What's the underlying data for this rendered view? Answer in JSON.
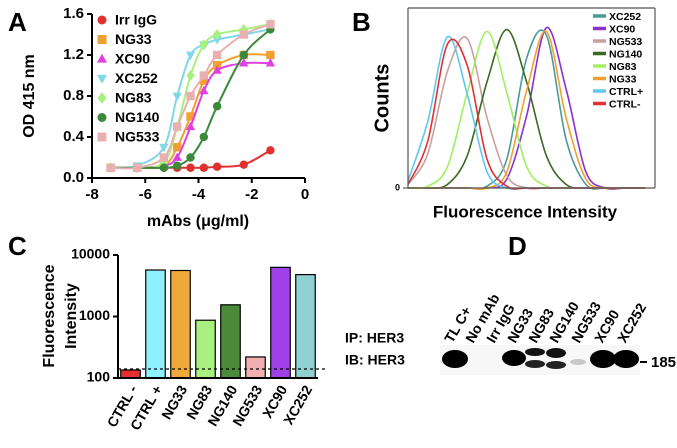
{
  "chart_data": [
    {
      "type": "line",
      "panel": "A",
      "xlabel": "mAbs (μg/ml)",
      "ylabel": "OD 415 nm",
      "x": [
        -7.3,
        -6.3,
        -5.3,
        -4.8,
        -4.3,
        -3.8,
        -3.3,
        -2.3,
        -1.3
      ],
      "xlim": [
        -8,
        0
      ],
      "xticks": [
        -8,
        -6,
        -4,
        -2,
        0
      ],
      "ylim": [
        0,
        1.6
      ],
      "yticks": [
        {
          "value": 0,
          "label": "0.0"
        },
        0.4,
        0.8,
        1.2,
        1.6
      ],
      "legend": "upper left",
      "frame": false,
      "series": [
        {
          "name": "Irr IgG",
          "color": "#e03030",
          "marker": "circle",
          "values": [
            0.1,
            0.1,
            0.1,
            0.1,
            0.1,
            0.1,
            0.11,
            0.13,
            0.27
          ]
        },
        {
          "name": "NG33",
          "color": "#f0a030",
          "marker": "square",
          "values": [
            0.1,
            0.1,
            0.12,
            0.3,
            0.6,
            0.95,
            1.1,
            1.2,
            1.2
          ]
        },
        {
          "name": "XC90",
          "color": "#e040e0",
          "marker": "triangle",
          "values": [
            0.1,
            0.1,
            0.12,
            0.2,
            0.5,
            0.85,
            1.05,
            1.12,
            1.12
          ]
        },
        {
          "name": "XC252",
          "color": "#80d8e8",
          "marker": "triangle-down",
          "values": [
            0.1,
            0.12,
            0.3,
            0.8,
            1.2,
            1.3,
            1.35,
            1.4,
            1.45
          ]
        },
        {
          "name": "NG83",
          "color": "#a8f080",
          "marker": "diamond",
          "values": [
            0.1,
            0.1,
            0.15,
            0.5,
            1.0,
            1.3,
            1.4,
            1.45,
            1.5
          ]
        },
        {
          "name": "NG140",
          "color": "#3a8a3a",
          "marker": "circle",
          "values": [
            0.1,
            0.1,
            0.1,
            0.12,
            0.2,
            0.4,
            0.7,
            1.2,
            1.45
          ]
        },
        {
          "name": "NG533",
          "color": "#e8b0b0",
          "marker": "square",
          "values": [
            0.1,
            0.1,
            0.2,
            0.5,
            0.8,
            1.0,
            1.2,
            1.4,
            1.5
          ]
        }
      ]
    },
    {
      "type": "line",
      "panel": "B",
      "xlabel": "Fluorescence Intensity",
      "ylabel": "Counts",
      "x": [
        0,
        8,
        16,
        24,
        32,
        40,
        48,
        56,
        64,
        72,
        80,
        88,
        96
      ],
      "xlim": [
        0,
        100
      ],
      "ylim": [
        0,
        100
      ],
      "yticks": [
        0
      ],
      "legend": "upper right",
      "frame": true,
      "series": [
        {
          "name": "XC252",
          "color": "#4a9a9a",
          "values": [
            0,
            0,
            0,
            0,
            1,
            16,
            72,
            85,
            27,
            2,
            0,
            0,
            0
          ]
        },
        {
          "name": "XC90",
          "color": "#8a30d0",
          "values": [
            0,
            0,
            0,
            0,
            0,
            5,
            40,
            89,
            55,
            9,
            0,
            0,
            0
          ]
        },
        {
          "name": "NG533",
          "color": "#c8a0a0",
          "values": [
            2,
            19,
            65,
            83,
            39,
            7,
            0,
            0,
            0,
            0,
            0,
            0,
            0
          ]
        },
        {
          "name": "NG140",
          "color": "#3a6a20",
          "values": [
            0,
            0,
            2,
            18,
            59,
            88,
            59,
            18,
            2,
            0,
            0,
            0,
            0
          ]
        },
        {
          "name": "NG83",
          "color": "#a0f060",
          "values": [
            0,
            1,
            12,
            53,
            87,
            53,
            12,
            1,
            0,
            0,
            0,
            0,
            0
          ]
        },
        {
          "name": "NG33",
          "color": "#f0a030",
          "values": [
            0,
            0,
            0,
            0,
            0,
            9,
            54,
            87,
            39,
            5,
            0,
            0,
            0
          ]
        },
        {
          "name": "CTRL+",
          "color": "#60c8f0",
          "values": [
            4,
            37,
            84,
            52,
            9,
            0,
            0,
            0,
            0,
            0,
            0,
            0,
            0
          ]
        },
        {
          "name": "CTRL-",
          "color": "#e03030",
          "values": [
            2,
            26,
            80,
            68,
            16,
            1,
            0,
            0,
            0,
            0,
            0,
            0,
            0
          ]
        }
      ]
    },
    {
      "type": "bar",
      "panel": "C",
      "ylabel": [
        "Fluorescence",
        "Intensity"
      ],
      "categories": [
        "CTRL -",
        "CTRL +",
        "NG33",
        "NG83",
        "NG140",
        "NG533",
        "XC90",
        "XC252"
      ],
      "values": [
        135,
        5700,
        5600,
        870,
        1550,
        220,
        6300,
        4800
      ],
      "colors": [
        "#e53030",
        "#8ff0ff",
        "#f0a838",
        "#a8f080",
        "#4a8a3a",
        "#f0b0b0",
        "#a040e8",
        "#90d0d0"
      ],
      "yscale": "log",
      "ylim": [
        100,
        10000
      ],
      "yticks": [
        100,
        1000,
        10000
      ],
      "reference_line": 140,
      "frame": false
    }
  ],
  "blot": {
    "panel": "D",
    "ip_label": "IP: HER3",
    "ib_label": "IB: HER3",
    "lanes": [
      "TL C+",
      "No mAb",
      "Irr IgG",
      "NG33",
      "NG83",
      "NG140",
      "NG533",
      "XC90",
      "XC252"
    ],
    "marker": "185"
  }
}
